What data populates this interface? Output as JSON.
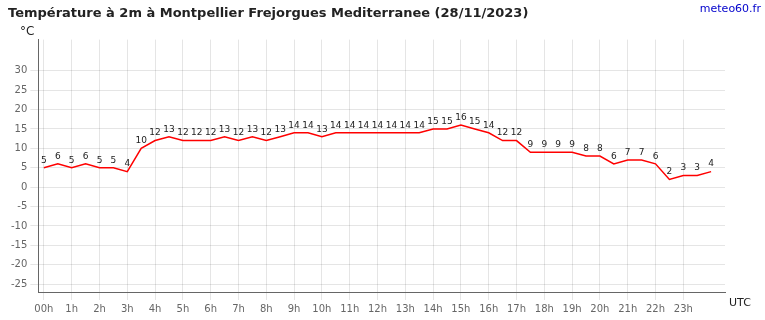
{
  "chart_data": {
    "type": "line",
    "title": "Température à 2m à Montpellier Frejorgues Mediterranee (28/11/2023)",
    "ylabel": "°C",
    "xlabel": "UTC",
    "annotations": [
      {
        "text": "meteo60.fr",
        "color": "#0000cc"
      }
    ],
    "x": [
      0,
      0.5,
      1,
      1.5,
      2,
      2.5,
      3,
      3.5,
      4,
      4.5,
      5,
      5.5,
      6,
      6.5,
      7,
      7.5,
      8,
      8.5,
      9,
      9.5,
      10,
      10.5,
      11,
      11.5,
      12,
      12.5,
      13,
      13.5,
      14,
      14.5,
      15,
      15.5,
      16,
      16.5,
      17,
      17.5,
      18,
      18.5,
      19,
      19.5,
      20,
      20.5,
      21,
      21.5,
      22,
      22.5,
      23,
      23.5,
      24
    ],
    "values": [
      5,
      6,
      5,
      6,
      5,
      5,
      4,
      10,
      12,
      13,
      12,
      12,
      12,
      13,
      12,
      13,
      12,
      13,
      14,
      14,
      13,
      14,
      14,
      14,
      14,
      14,
      14,
      14,
      15,
      15,
      16,
      15,
      14,
      12,
      12,
      9,
      9,
      9,
      9,
      8,
      8,
      6,
      7,
      7,
      6,
      2,
      3,
      3,
      4
    ],
    "color": "#ff0000",
    "xlim": [
      -0.2,
      24.5
    ],
    "xticks": [
      {
        "value": 0,
        "label": "00h"
      },
      {
        "value": 1,
        "label": "1h"
      },
      {
        "value": 2,
        "label": "2h"
      },
      {
        "value": 3,
        "label": "3h"
      },
      {
        "value": 4,
        "label": "4h"
      },
      {
        "value": 5,
        "label": "5h"
      },
      {
        "value": 6,
        "label": "6h"
      },
      {
        "value": 7,
        "label": "7h"
      },
      {
        "value": 8,
        "label": "8h"
      },
      {
        "value": 9,
        "label": "9h"
      },
      {
        "value": 10,
        "label": "10h"
      },
      {
        "value": 11,
        "label": "11h"
      },
      {
        "value": 12,
        "label": "12h"
      },
      {
        "value": 13,
        "label": "13h"
      },
      {
        "value": 14,
        "label": "14h"
      },
      {
        "value": 15,
        "label": "15h"
      },
      {
        "value": 16,
        "label": "16h"
      },
      {
        "value": 17,
        "label": "17h"
      },
      {
        "value": 18,
        "label": "18h"
      },
      {
        "value": 19,
        "label": "19h"
      },
      {
        "value": 20,
        "label": "20h"
      },
      {
        "value": 21,
        "label": "21h"
      },
      {
        "value": 22,
        "label": "22h"
      },
      {
        "value": 23,
        "label": "23h"
      }
    ],
    "ylim": [
      -27,
      38
    ],
    "yticks": [
      -25,
      -20,
      -15,
      -10,
      -5,
      0,
      5,
      10,
      15,
      20,
      25,
      30
    ],
    "grid": true,
    "data_labels": true
  }
}
